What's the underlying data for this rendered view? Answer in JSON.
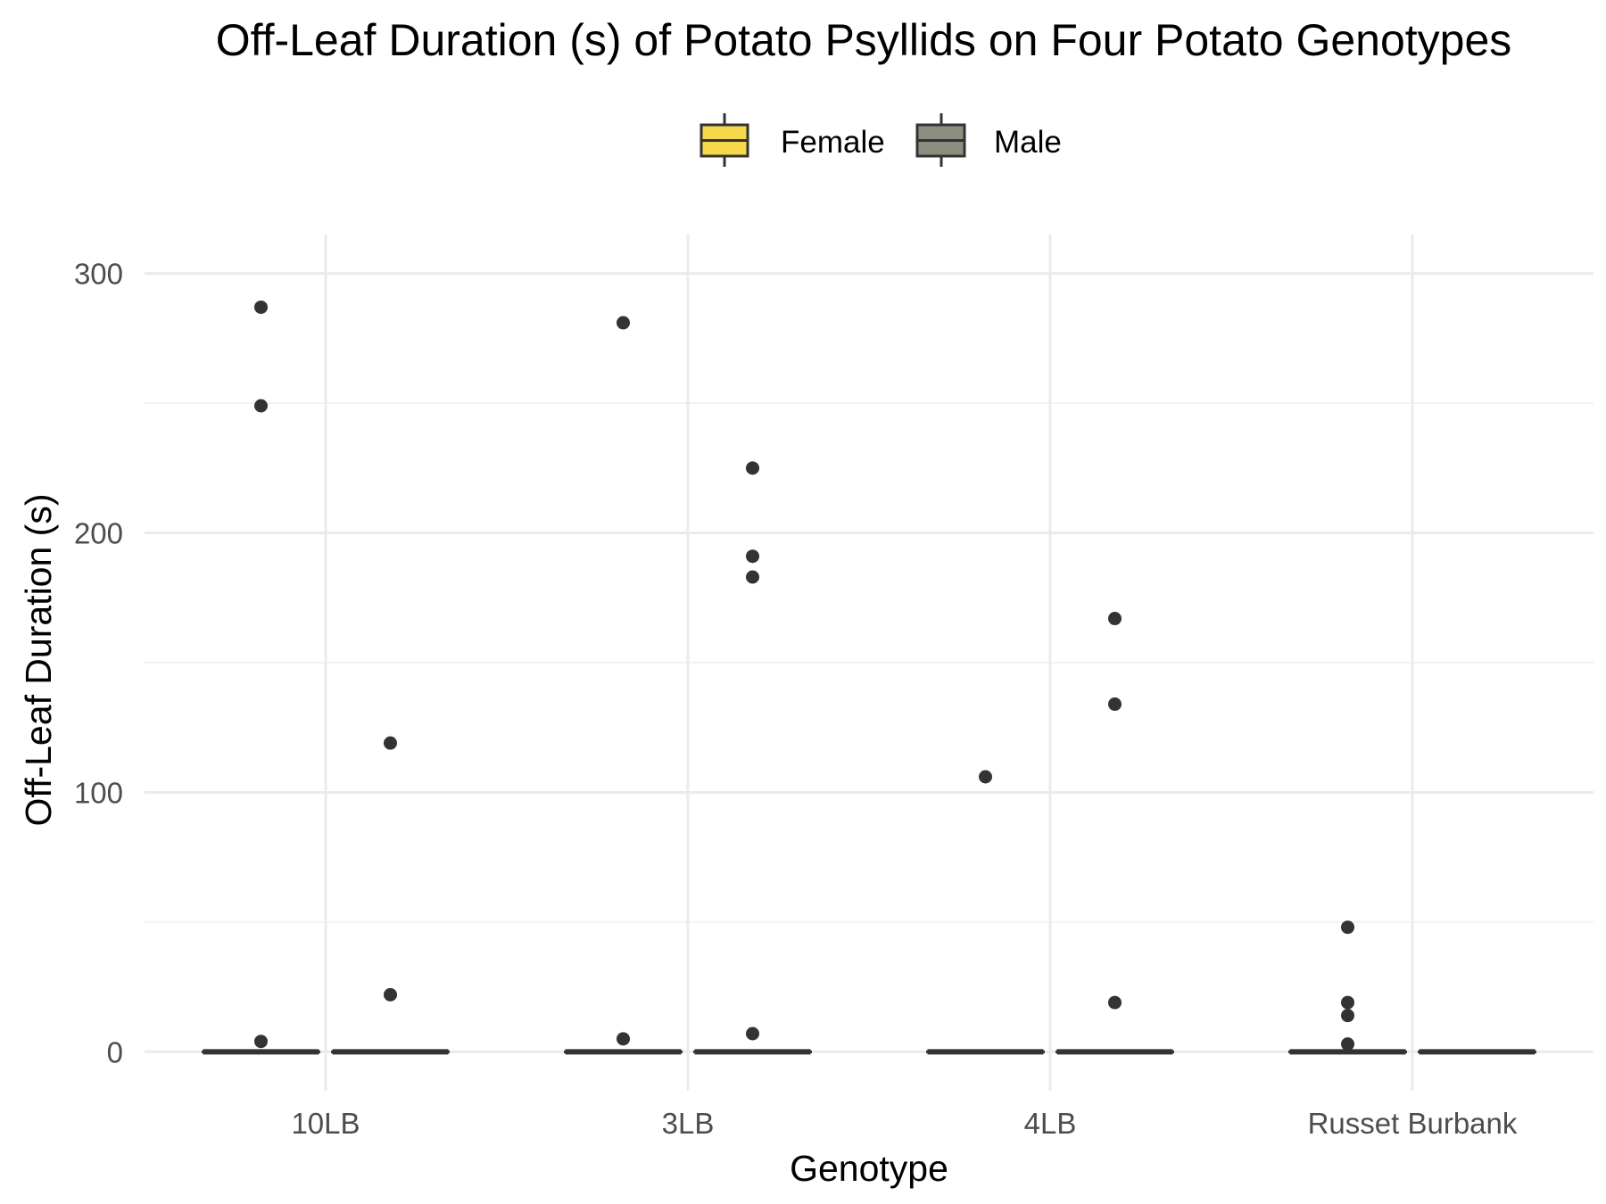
{
  "chart_data": {
    "type": "boxplot",
    "title": "Off-Leaf Duration (s) of Potato Psyllids on Four Potato Genotypes",
    "xlabel": "Genotype",
    "ylabel": "Off-Leaf Duration (s)",
    "categories": [
      "10LB",
      "3LB",
      "4LB",
      "Russet Burbank"
    ],
    "ylim": [
      -15,
      315
    ],
    "yticks": [
      0,
      100,
      200,
      300
    ],
    "grid": true,
    "legend_position": "top",
    "series": [
      {
        "name": "Female",
        "color": "#F5D94A",
        "median": [
          0,
          0,
          0,
          0
        ],
        "q1": [
          0,
          0,
          0,
          0
        ],
        "q3": [
          0,
          0,
          0,
          0
        ],
        "outliers": [
          [
            287,
            249,
            4
          ],
          [
            281,
            5
          ],
          [
            106
          ],
          [
            48,
            19,
            14,
            3
          ]
        ]
      },
      {
        "name": "Male",
        "color": "#8E8E80",
        "median": [
          0,
          0,
          0,
          0
        ],
        "q1": [
          0,
          0,
          0,
          0
        ],
        "q3": [
          0,
          0,
          0,
          0
        ],
        "outliers": [
          [
            119,
            22
          ],
          [
            225,
            191,
            183,
            7
          ],
          [
            167,
            134,
            19
          ],
          []
        ]
      }
    ]
  }
}
